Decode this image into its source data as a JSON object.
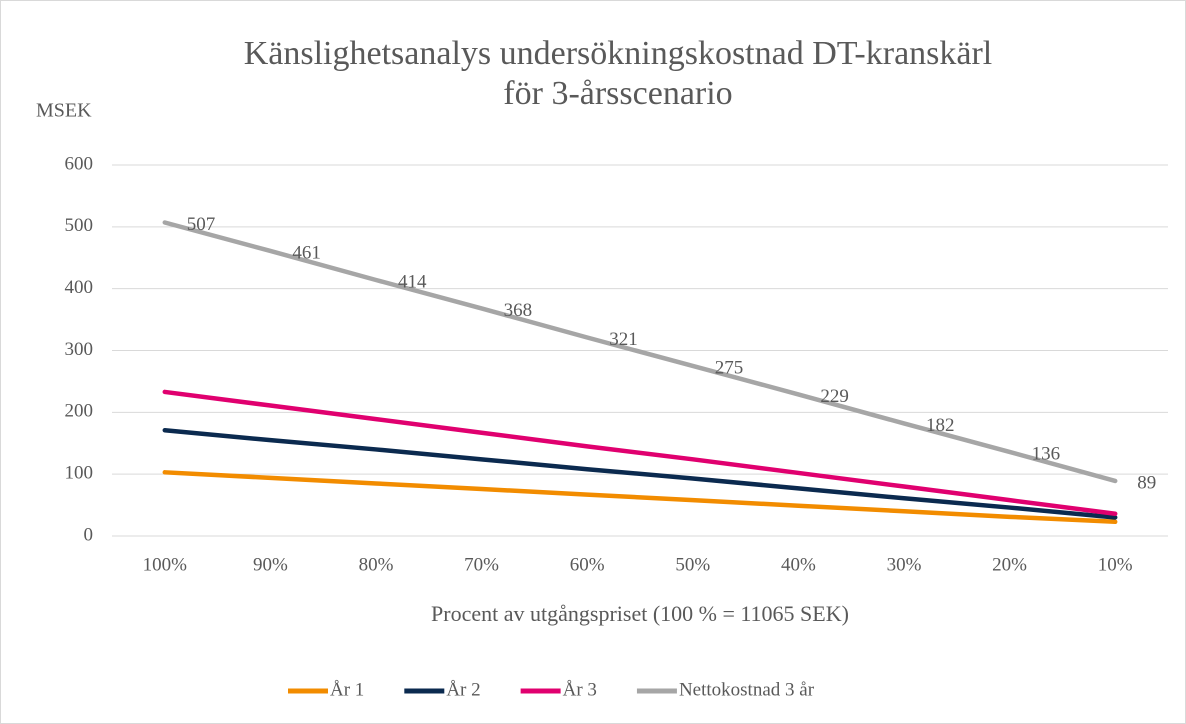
{
  "chart_data": {
    "type": "line",
    "title": [
      "Känslighetsanalys undersökningskostnad DT-kranskärl",
      "för 3-årsscenario"
    ],
    "y_label": "MSEK",
    "x_label": "Procent av utgångspriset (100 % = 11065 SEK)",
    "categories": [
      "100%",
      "90%",
      "80%",
      "70%",
      "60%",
      "50%",
      "40%",
      "30%",
      "20%",
      "10%"
    ],
    "series": [
      {
        "name": "År 1",
        "color": "#f28c00",
        "values": [
          103,
          94,
          85,
          76,
          67,
          58,
          49,
          40,
          31,
          23
        ]
      },
      {
        "name": "År 2",
        "color": "#0b2a4f",
        "values": [
          171,
          155,
          140,
          124,
          108,
          93,
          77,
          61,
          46,
          30
        ]
      },
      {
        "name": "År 3",
        "color": "#e0006f",
        "values": [
          233,
          211,
          189,
          167,
          145,
          124,
          102,
          80,
          58,
          36
        ]
      },
      {
        "name": "Nettokostnad 3 år",
        "color": "#a6a6a6",
        "values": [
          507,
          461,
          414,
          368,
          321,
          275,
          229,
          182,
          136,
          89
        ],
        "data_labels": true
      }
    ],
    "ylim": [
      0,
      600
    ],
    "yticks": [
      0,
      100,
      200,
      300,
      400,
      500,
      600
    ],
    "grid": true,
    "legend": "bottom"
  }
}
